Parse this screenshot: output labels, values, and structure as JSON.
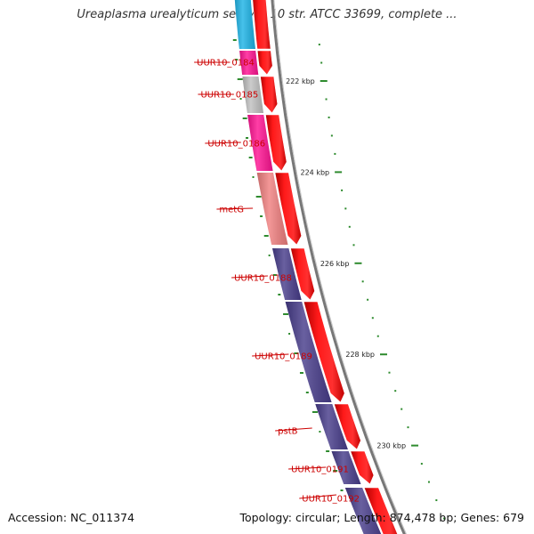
{
  "title": "Ureaplasma urealyticum serovar 10 str. ATCC 33699, complete ...",
  "footer": {
    "accession": "Accession: NC_011374",
    "topology": "Topology: circular; Length: 874,478 bp; Genes: 679"
  },
  "ticks": [
    {
      "label": "222 kbp",
      "kbp": 222
    },
    {
      "label": "224 kbp",
      "kbp": 224
    },
    {
      "label": "226 kbp",
      "kbp": 226
    },
    {
      "label": "228 kbp",
      "kbp": 228
    },
    {
      "label": "230 kbp",
      "kbp": 230
    }
  ],
  "genes": [
    {
      "label": "UUR10_0184",
      "cog_color": "#ff1493",
      "strand": "+"
    },
    {
      "label": "UUR10_0185",
      "cog_color": "#c0c0c0",
      "strand": "+"
    },
    {
      "label": "UUR10_0186",
      "cog_color": "#ff1493",
      "strand": "+"
    },
    {
      "label": "metG",
      "cog_color": "#f08080",
      "strand": "+"
    },
    {
      "label": "UUR10_0188",
      "cog_color": "#483d8b",
      "strand": "+"
    },
    {
      "label": "UUR10_0189",
      "cog_color": "#483d8b",
      "strand": "+"
    },
    {
      "label": "pstB",
      "cog_color": "#483d8b",
      "strand": "+"
    },
    {
      "label": "UUR10_0191",
      "cog_color": "#483d8b",
      "strand": "+"
    },
    {
      "label": "UUR10_0192",
      "cog_color": "#483d8b",
      "strand": "+"
    }
  ],
  "colors": {
    "cds_forward": "#ff0000",
    "backbone": "#777777",
    "tick": "#2e8b2e",
    "label": "#cc0000",
    "cog_top": "#1eb4e6"
  }
}
